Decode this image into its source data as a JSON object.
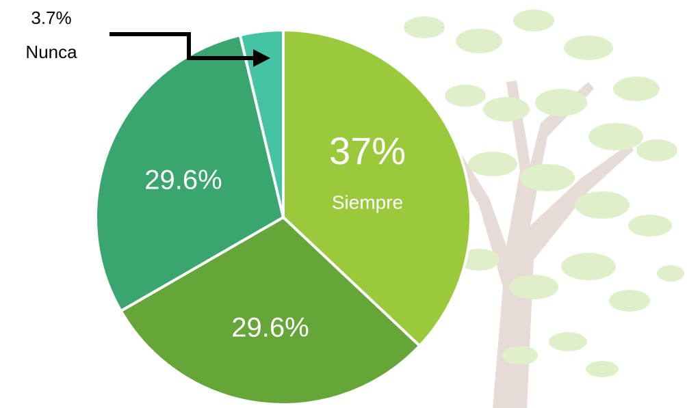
{
  "chart_data": {
    "type": "pie",
    "categories": [
      "Siempre",
      null,
      null,
      "Nunca"
    ],
    "values": [
      37,
      29.6,
      29.6,
      3.7
    ],
    "value_labels": [
      "37%",
      "29.6%",
      "29.6%",
      "3.7%"
    ],
    "colors": [
      "#9aca3c",
      "#66a638",
      "#38a66e",
      "#45c3a4"
    ],
    "start_angle": 0,
    "direction": "clockwise"
  }
}
